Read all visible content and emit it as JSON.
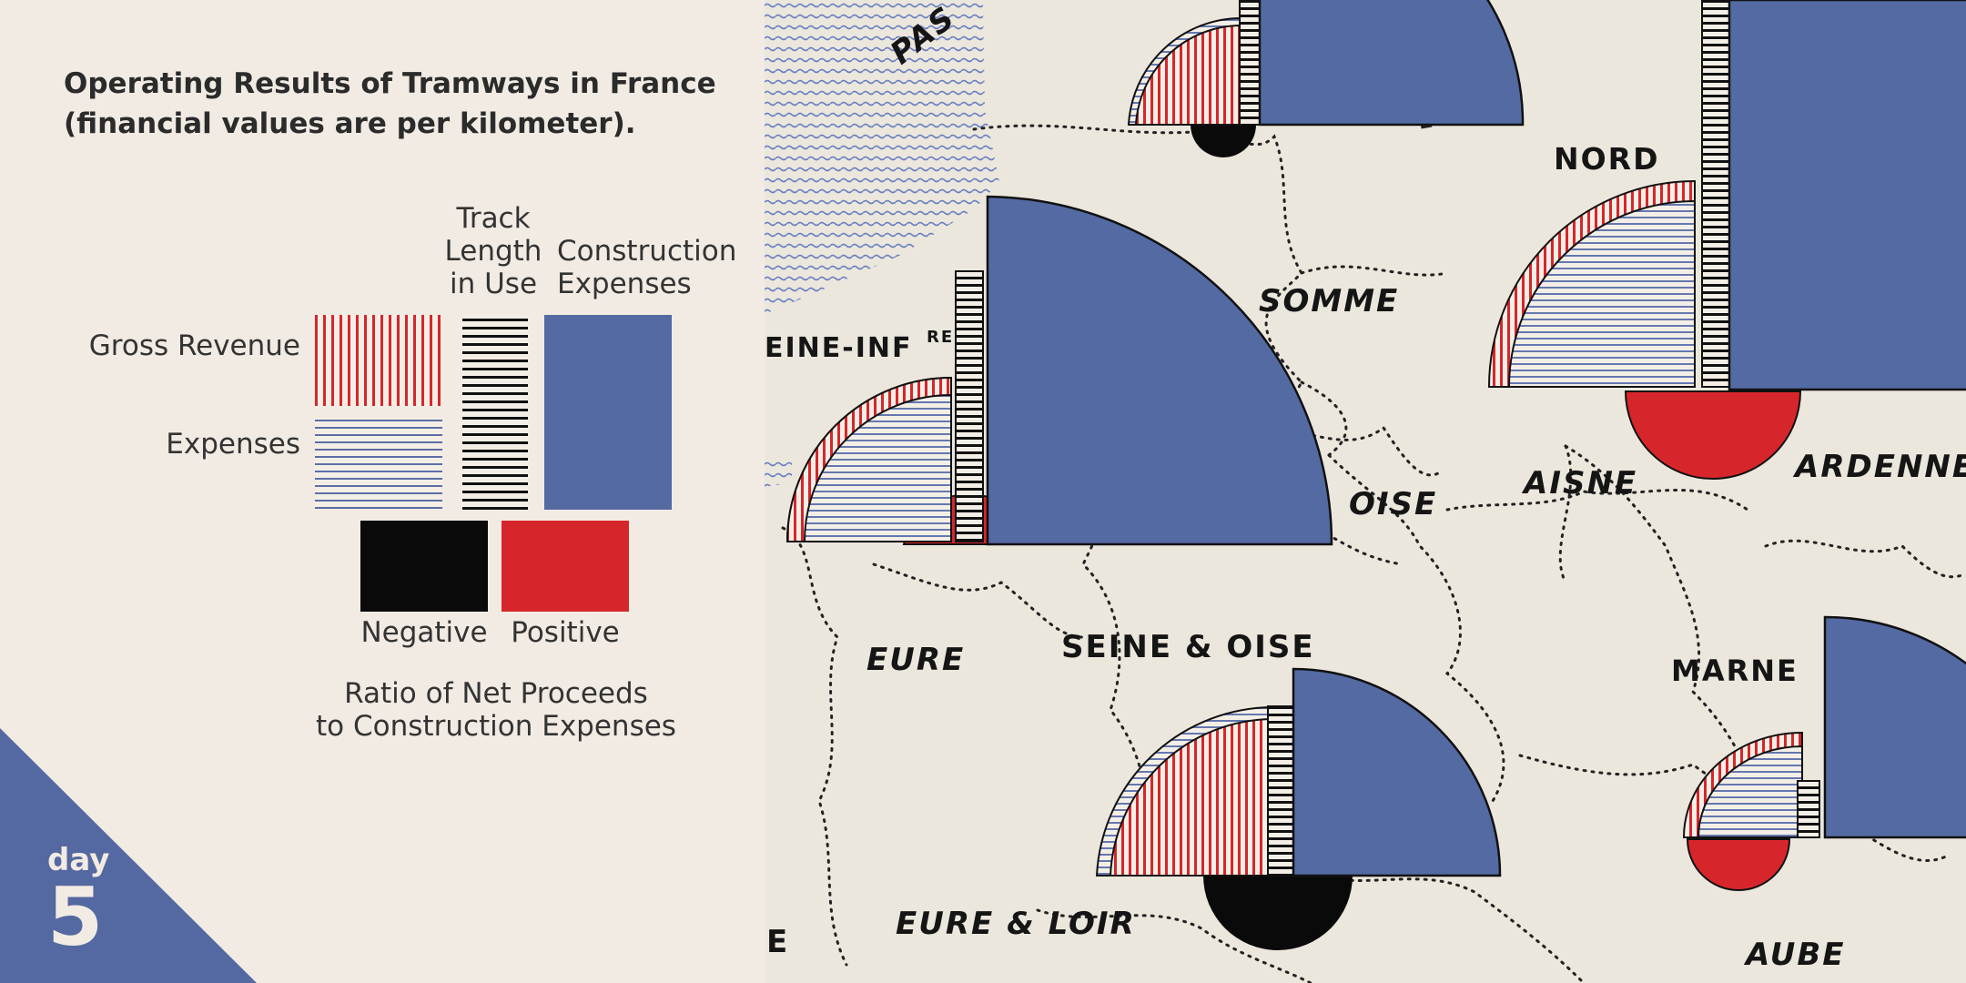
{
  "title_line1": "Operating Results of Tramways in France",
  "title_line2": "(financial values are per kilometer).",
  "legend": {
    "track_length": [
      "Track",
      "Length",
      "in Use"
    ],
    "construction_expenses": [
      "Construction",
      "Expenses"
    ],
    "gross_revenue": "Gross Revenue",
    "expenses": "Expenses",
    "negative": "Negative",
    "positive": "Positive",
    "ratio_line1": "Ratio of Net Proceeds",
    "ratio_line2": "to Construction Expenses"
  },
  "colors": {
    "revenue_red": "#d7262b",
    "expense_blue": "#5b6ea6",
    "construction_blue": "#536aa3",
    "negative_black": "#0b0a0b",
    "positive_red": "#d7262b",
    "badge_blue": "#5468a1"
  },
  "badge": {
    "word": "day",
    "number": "5"
  },
  "map": {
    "departments": {
      "pas": "PAS",
      "nord": "NORD",
      "somme": "SOMME",
      "seine_inf": "EINE-INF",
      "seine_inf_sup": "RE",
      "oise": "OISE",
      "aisne": "AISNE",
      "ardennes": "ARDENNE",
      "eure": "EURE",
      "seine_oise": "SEINE & OISE",
      "marne": "MARNE",
      "eure_loir": "EURE & LOIR",
      "aube": "AUBE",
      "edge_e": "E"
    }
  }
}
